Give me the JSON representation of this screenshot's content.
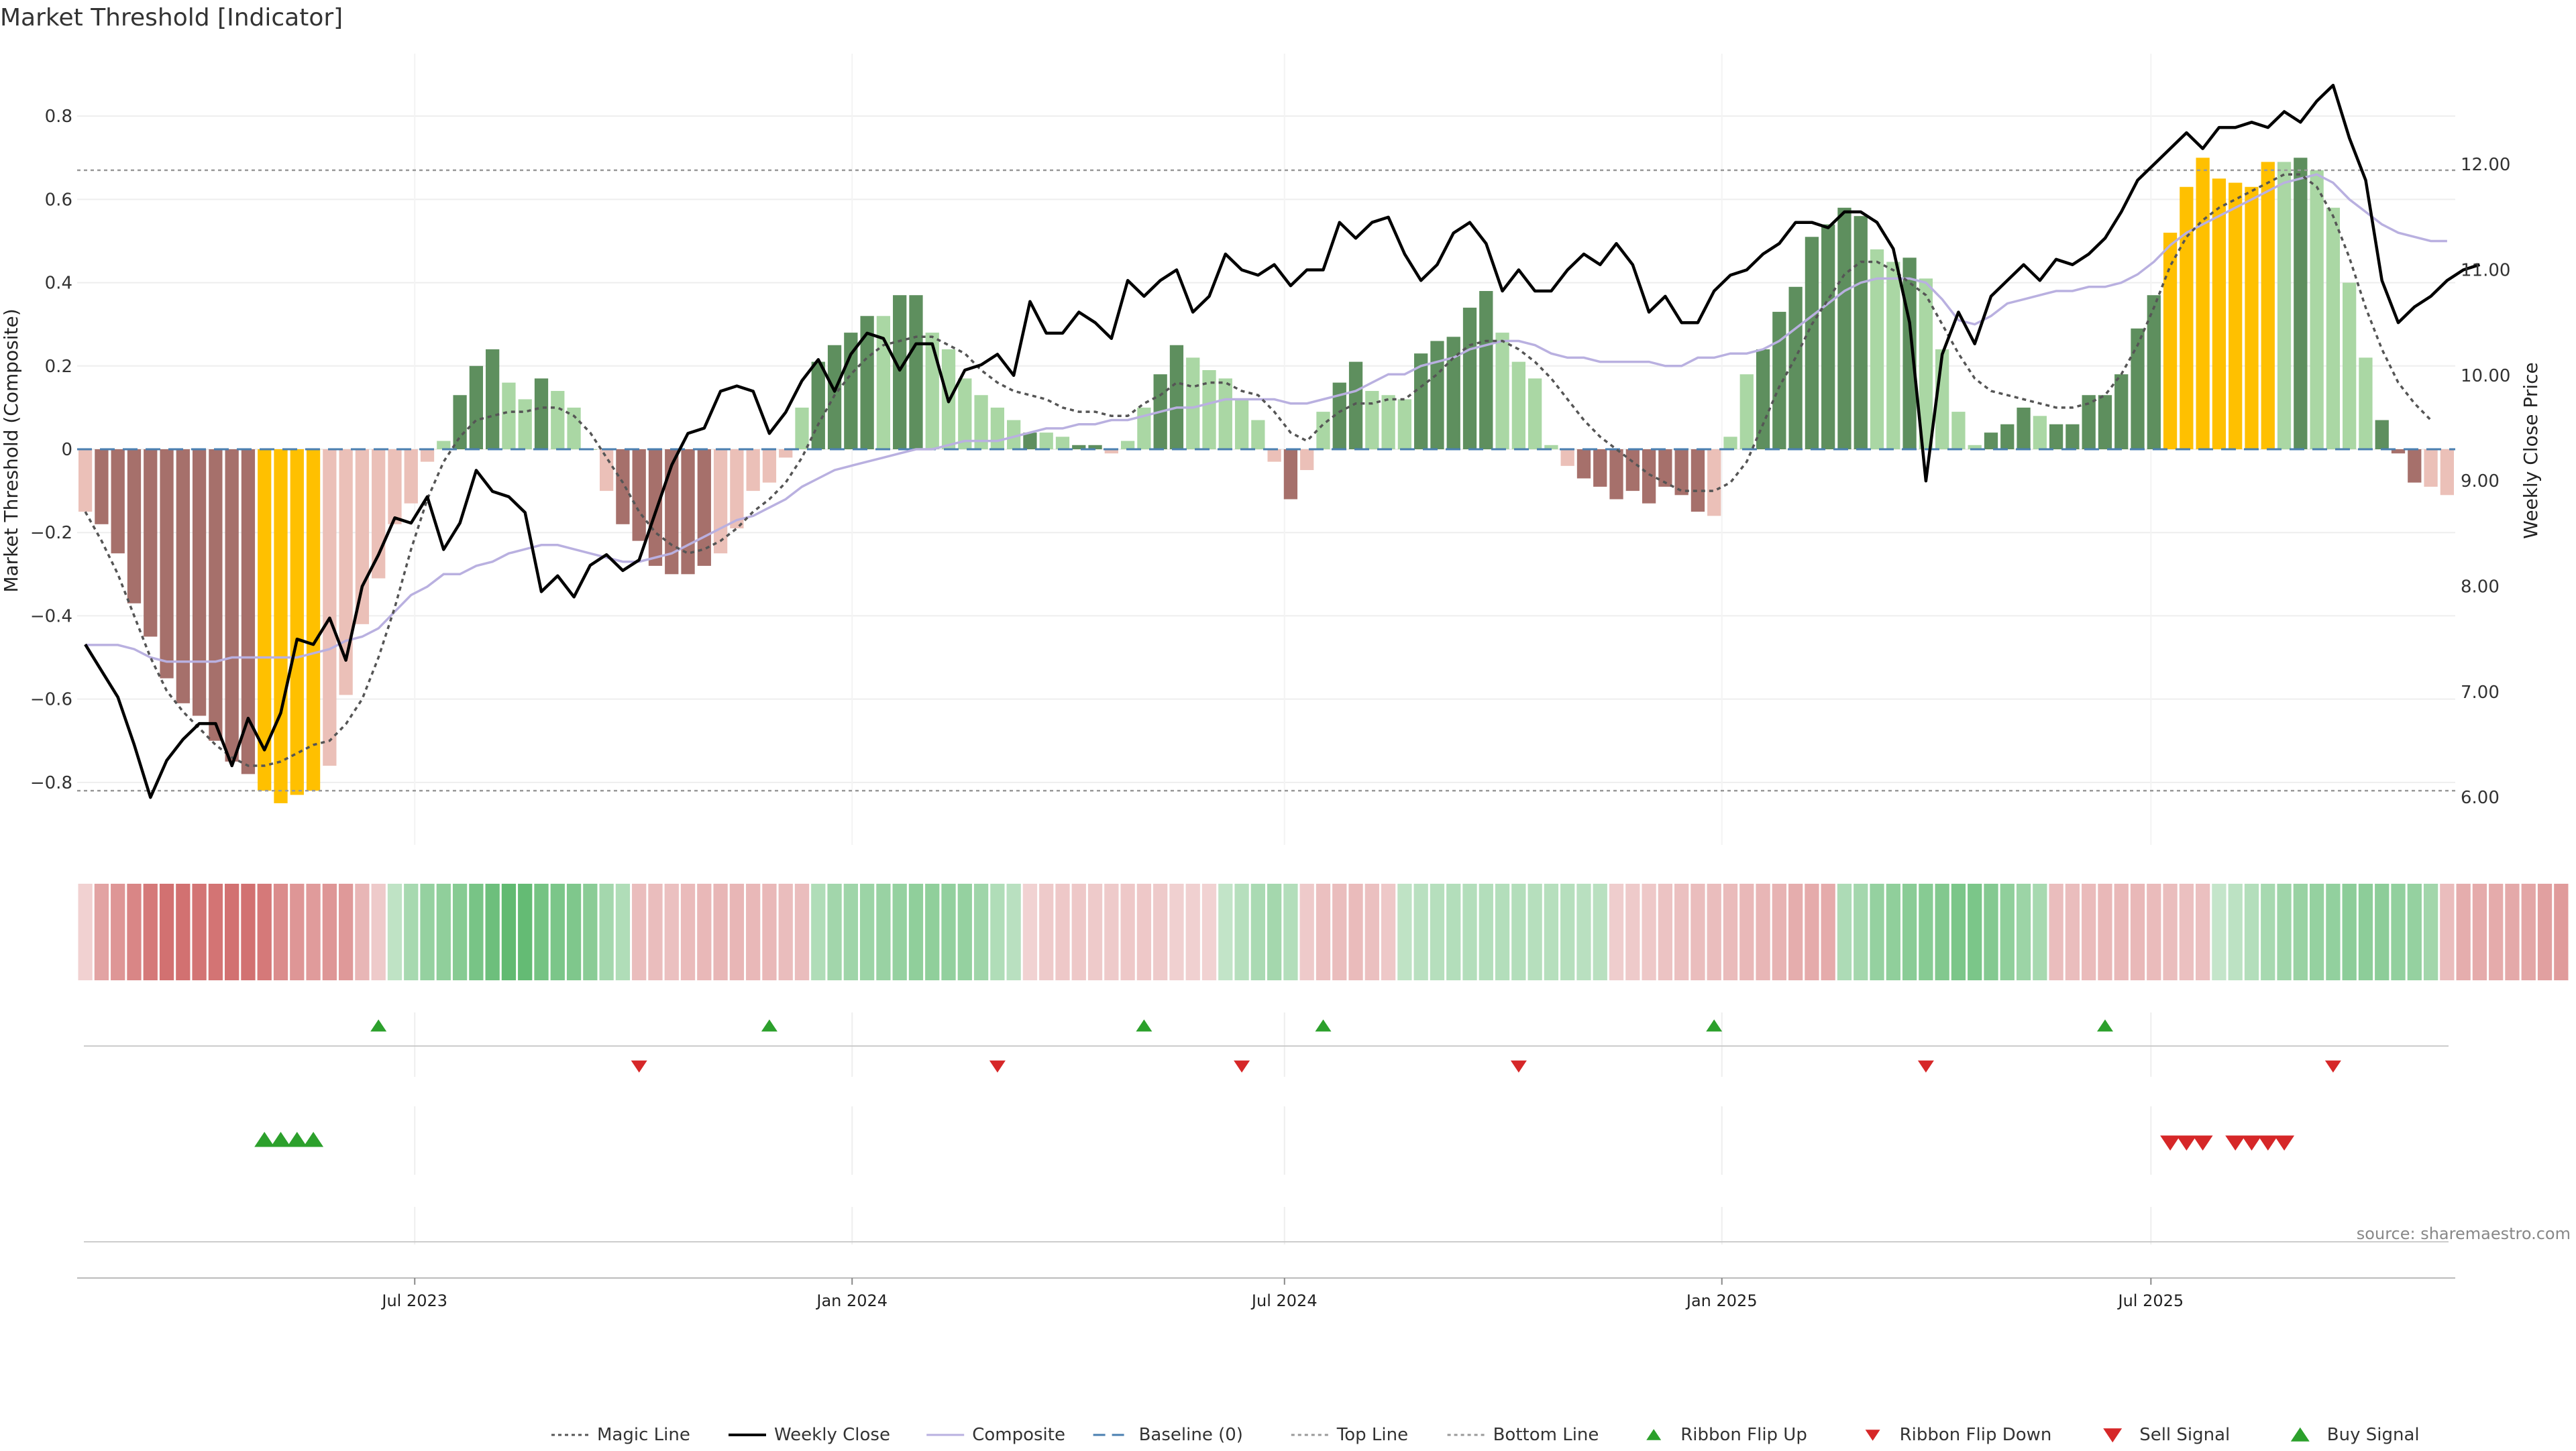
{
  "chart_data": {
    "type": "bar",
    "title": "Market Threshold [Indicator]",
    "ylabel": "Market Threshold (Composite)",
    "y2label": "Weekly Close Price",
    "source": "source: sharemaestro.com",
    "ylim": [
      -0.95,
      0.95
    ],
    "y2lim": [
      5.55,
      13.05
    ],
    "yticks": [
      -0.8,
      -0.6,
      -0.4,
      -0.2,
      0,
      0.2,
      0.4,
      0.6,
      0.8
    ],
    "ytick_labels": [
      "−0.8",
      "−0.6",
      "−0.4",
      "−0.2",
      "0",
      "0.2",
      "0.4",
      "0.6",
      "0.8"
    ],
    "y2ticks": [
      6,
      7,
      8,
      9,
      10,
      11,
      12
    ],
    "y2tick_labels": [
      "6.00",
      "7.00",
      "8.00",
      "9.00",
      "10.00",
      "11.00",
      "12.00"
    ],
    "x_range": [
      0,
      143
    ],
    "xticks": [
      {
        "label": "Jul 2023",
        "x": 20.3
      },
      {
        "label": "Jan 2024",
        "x": 46.6
      },
      {
        "label": "Jul 2024",
        "x": 72.6
      },
      {
        "label": "Jan 2025",
        "x": 98.9
      },
      {
        "label": "Jul 2025",
        "x": 124.7
      }
    ],
    "top_line": 0.67,
    "bottom_line": -0.82,
    "baseline": 0,
    "grid": true,
    "legend_placement": "bottom-center",
    "colors": {
      "dark_green": "#5e8f5e",
      "light_green": "#aad7a4",
      "dark_red": "#a6706b",
      "light_red": "#ebc0b8",
      "gold": "#ffc000",
      "close_line": "#000000",
      "composite_line": "#b9b0e0",
      "magic_line": "#555555",
      "baseline": "#4a7fb0",
      "threshold_line": "#999999",
      "buy": "#2ca02c",
      "sell": "#d62728"
    },
    "composite": [
      -0.15,
      -0.18,
      -0.25,
      -0.37,
      -0.45,
      -0.55,
      -0.61,
      -0.64,
      -0.7,
      -0.75,
      -0.78,
      -0.82,
      -0.85,
      -0.83,
      -0.82,
      -0.76,
      -0.59,
      -0.42,
      -0.31,
      -0.18,
      -0.13,
      -0.03,
      0.02,
      0.13,
      0.2,
      0.24,
      0.16,
      0.12,
      0.17,
      0.14,
      0.1,
      0,
      -0.1,
      -0.18,
      -0.22,
      -0.28,
      -0.3,
      -0.3,
      -0.28,
      -0.25,
      -0.19,
      -0.1,
      -0.08,
      -0.02,
      0.1,
      0.21,
      0.25,
      0.28,
      0.32,
      0.32,
      0.37,
      0.37,
      0.28,
      0.24,
      0.17,
      0.13,
      0.1,
      0.07,
      0.04,
      0.04,
      0.03,
      0.01,
      0.01,
      -0.01,
      0.02,
      0.1,
      0.18,
      0.25,
      0.22,
      0.19,
      0.17,
      0.12,
      0.07,
      -0.03,
      -0.12,
      -0.05,
      0.09,
      0.16,
      0.21,
      0.14,
      0.13,
      0.12,
      0.23,
      0.26,
      0.27,
      0.34,
      0.38,
      0.28,
      0.21,
      0.17,
      0.01,
      -0.04,
      -0.07,
      -0.09,
      -0.12,
      -0.1,
      -0.13,
      -0.09,
      -0.11,
      -0.15,
      -0.16,
      0.03,
      0.18,
      0.24,
      0.33,
      0.39,
      0.51,
      0.54,
      0.58,
      0.56,
      0.48,
      0.45,
      0.46,
      0.41,
      0.24,
      0.09,
      0.01,
      0.04,
      0.06,
      0.1,
      0.08,
      0.06,
      0.06,
      0.13,
      0.13,
      0.18,
      0.29,
      0.37,
      0.52,
      0.63,
      0.7,
      0.65,
      0.64,
      0.63,
      0.69,
      0.69,
      0.7,
      0.67,
      0.58,
      0.4,
      0.22,
      0.07,
      -0.01,
      -0.08,
      -0.09,
      -0.11
    ],
    "bar_shade": [
      "L",
      "D",
      "D",
      "D",
      "D",
      "D",
      "D",
      "D",
      "D",
      "D",
      "D",
      "G",
      "G",
      "G",
      "G",
      "L",
      "L",
      "L",
      "L",
      "L",
      "L",
      "L",
      "L",
      "D",
      "D",
      "D",
      "L",
      "L",
      "D",
      "L",
      "L",
      "L",
      "L",
      "D",
      "D",
      "D",
      "D",
      "D",
      "D",
      "L",
      "L",
      "L",
      "L",
      "L",
      "L",
      "D",
      "D",
      "D",
      "D",
      "L",
      "D",
      "D",
      "L",
      "L",
      "L",
      "L",
      "L",
      "L",
      "D",
      "L",
      "L",
      "D",
      "D",
      "L",
      "L",
      "L",
      "D",
      "D",
      "L",
      "L",
      "L",
      "L",
      "L",
      "L",
      "D",
      "L",
      "L",
      "D",
      "D",
      "L",
      "L",
      "L",
      "D",
      "D",
      "D",
      "D",
      "D",
      "L",
      "L",
      "L",
      "L",
      "L",
      "D",
      "D",
      "D",
      "D",
      "D",
      "D",
      "D",
      "D",
      "L",
      "L",
      "L",
      "D",
      "D",
      "D",
      "D",
      "D",
      "D",
      "D",
      "L",
      "L",
      "D",
      "L",
      "L",
      "L",
      "L",
      "D",
      "D",
      "D",
      "L",
      "D",
      "D",
      "D",
      "D",
      "D",
      "D",
      "D",
      "G",
      "G",
      "G",
      "G",
      "G",
      "G",
      "G",
      "L",
      "D",
      "L",
      "L",
      "L",
      "L",
      "D",
      "D",
      "D"
    ],
    "weekly_close": [
      7.45,
      7.2,
      6.95,
      6.5,
      6.0,
      6.35,
      6.55,
      6.7,
      6.7,
      6.3,
      6.75,
      6.45,
      6.8,
      7.5,
      7.45,
      7.7,
      7.3,
      8.0,
      8.3,
      8.65,
      8.6,
      8.85,
      8.35,
      8.6,
      9.1,
      8.9,
      8.85,
      8.7,
      7.95,
      8.1,
      7.9,
      8.2,
      8.3,
      8.15,
      8.25,
      8.7,
      9.15,
      9.45,
      9.5,
      9.85,
      9.9,
      9.85,
      9.45,
      9.65,
      9.95,
      10.15,
      9.85,
      10.2,
      10.4,
      10.35,
      10.05,
      10.3,
      10.3,
      9.75,
      10.05,
      10.1,
      10.2,
      10.0,
      10.7,
      10.4,
      10.4,
      10.6,
      10.5,
      10.35,
      10.9,
      10.75,
      10.9,
      11.0,
      10.6,
      10.75,
      11.15,
      11.0,
      10.95,
      11.05,
      10.85,
      11.0,
      11.0,
      11.45,
      11.3,
      11.45,
      11.5,
      11.15,
      10.9,
      11.05,
      11.35,
      11.45,
      11.25,
      10.8,
      11.0,
      10.8,
      10.8,
      11.0,
      11.15,
      11.05,
      11.25,
      11.05,
      10.6,
      10.75,
      10.5,
      10.5,
      10.8,
      10.95,
      11.0,
      11.15,
      11.25,
      11.45,
      11.45,
      11.4,
      11.55,
      11.55,
      11.45,
      11.2,
      10.5,
      9.0,
      10.2,
      10.6,
      10.3,
      10.75,
      10.9,
      11.05,
      10.9,
      11.1,
      11.05,
      11.15,
      11.3,
      11.55,
      11.85,
      12.0,
      12.15,
      12.3,
      12.15,
      12.35,
      12.35,
      12.4,
      12.35,
      12.5,
      12.4,
      12.6,
      12.75,
      12.25,
      11.85,
      10.9,
      10.5,
      10.65,
      10.75,
      10.9,
      11.0,
      11.05
    ],
    "composite_line": [
      -0.47,
      -0.47,
      -0.47,
      -0.48,
      -0.5,
      -0.51,
      -0.51,
      -0.51,
      -0.51,
      -0.5,
      -0.5,
      -0.5,
      -0.5,
      -0.5,
      -0.49,
      -0.48,
      -0.46,
      -0.45,
      -0.43,
      -0.39,
      -0.35,
      -0.33,
      -0.3,
      -0.3,
      -0.28,
      -0.27,
      -0.25,
      -0.24,
      -0.23,
      -0.23,
      -0.24,
      -0.25,
      -0.26,
      -0.27,
      -0.27,
      -0.26,
      -0.25,
      -0.23,
      -0.21,
      -0.19,
      -0.17,
      -0.16,
      -0.14,
      -0.12,
      -0.09,
      -0.07,
      -0.05,
      -0.04,
      -0.03,
      -0.02,
      -0.01,
      0.0,
      0.0,
      0.01,
      0.02,
      0.02,
      0.02,
      0.03,
      0.04,
      0.05,
      0.05,
      0.06,
      0.06,
      0.07,
      0.07,
      0.08,
      0.09,
      0.1,
      0.1,
      0.11,
      0.12,
      0.12,
      0.12,
      0.12,
      0.11,
      0.11,
      0.12,
      0.13,
      0.14,
      0.16,
      0.18,
      0.18,
      0.2,
      0.21,
      0.22,
      0.24,
      0.25,
      0.26,
      0.26,
      0.25,
      0.23,
      0.22,
      0.22,
      0.21,
      0.21,
      0.21,
      0.21,
      0.2,
      0.2,
      0.22,
      0.22,
      0.23,
      0.23,
      0.24,
      0.26,
      0.29,
      0.32,
      0.35,
      0.38,
      0.4,
      0.41,
      0.41,
      0.41,
      0.4,
      0.36,
      0.31,
      0.3,
      0.32,
      0.35,
      0.36,
      0.37,
      0.38,
      0.38,
      0.39,
      0.39,
      0.4,
      0.42,
      0.45,
      0.49,
      0.52,
      0.54,
      0.56,
      0.58,
      0.6,
      0.62,
      0.64,
      0.65,
      0.66,
      0.64,
      0.6,
      0.57,
      0.54,
      0.52,
      0.51,
      0.5,
      0.5
    ],
    "magic_line": [
      -0.15,
      -0.22,
      -0.3,
      -0.4,
      -0.5,
      -0.58,
      -0.63,
      -0.67,
      -0.71,
      -0.74,
      -0.76,
      -0.76,
      -0.75,
      -0.73,
      -0.71,
      -0.7,
      -0.66,
      -0.6,
      -0.5,
      -0.38,
      -0.24,
      -0.12,
      -0.03,
      0.03,
      0.07,
      0.08,
      0.09,
      0.09,
      0.1,
      0.1,
      0.08,
      0.04,
      -0.02,
      -0.08,
      -0.15,
      -0.2,
      -0.23,
      -0.25,
      -0.24,
      -0.22,
      -0.19,
      -0.15,
      -0.12,
      -0.08,
      -0.02,
      0.06,
      0.13,
      0.18,
      0.22,
      0.25,
      0.26,
      0.27,
      0.27,
      0.25,
      0.23,
      0.19,
      0.16,
      0.14,
      0.13,
      0.12,
      0.1,
      0.09,
      0.09,
      0.08,
      0.08,
      0.11,
      0.13,
      0.16,
      0.15,
      0.16,
      0.16,
      0.14,
      0.13,
      0.09,
      0.04,
      0.02,
      0.06,
      0.09,
      0.11,
      0.11,
      0.12,
      0.12,
      0.15,
      0.18,
      0.22,
      0.25,
      0.26,
      0.26,
      0.24,
      0.21,
      0.17,
      0.12,
      0.07,
      0.03,
      0.0,
      -0.03,
      -0.06,
      -0.08,
      -0.1,
      -0.1,
      -0.1,
      -0.08,
      -0.03,
      0.06,
      0.15,
      0.22,
      0.3,
      0.36,
      0.42,
      0.45,
      0.45,
      0.43,
      0.4,
      0.37,
      0.3,
      0.23,
      0.17,
      0.14,
      0.13,
      0.12,
      0.11,
      0.1,
      0.1,
      0.11,
      0.13,
      0.18,
      0.25,
      0.34,
      0.44,
      0.51,
      0.55,
      0.58,
      0.6,
      0.62,
      0.64,
      0.66,
      0.66,
      0.63,
      0.56,
      0.46,
      0.34,
      0.24,
      0.16,
      0.11,
      0.07
    ],
    "ribbon": [
      -0.15,
      -0.5,
      -0.6,
      -0.72,
      -0.82,
      -0.88,
      -0.88,
      -0.86,
      -0.86,
      -0.88,
      -0.88,
      -0.82,
      -0.68,
      -0.6,
      -0.56,
      -0.6,
      -0.58,
      -0.36,
      -0.2,
      0.24,
      0.4,
      0.52,
      0.56,
      0.62,
      0.72,
      0.8,
      0.88,
      0.86,
      0.74,
      0.7,
      0.68,
      0.6,
      0.42,
      0.34,
      -0.3,
      -0.3,
      -0.28,
      -0.32,
      -0.34,
      -0.36,
      -0.36,
      -0.34,
      -0.34,
      -0.3,
      -0.3,
      0.34,
      0.44,
      0.46,
      0.48,
      0.5,
      0.52,
      0.56,
      0.56,
      0.54,
      0.52,
      0.46,
      0.34,
      0.28,
      -0.14,
      -0.2,
      -0.22,
      -0.22,
      -0.2,
      -0.2,
      -0.22,
      -0.22,
      -0.2,
      -0.16,
      -0.16,
      -0.14,
      0.22,
      0.3,
      0.38,
      0.42,
      0.32,
      -0.2,
      -0.28,
      -0.3,
      -0.32,
      -0.28,
      -0.22,
      0.24,
      0.28,
      0.3,
      0.32,
      0.32,
      0.32,
      0.32,
      0.32,
      0.3,
      0.3,
      0.3,
      0.28,
      0.28,
      -0.18,
      -0.2,
      -0.22,
      -0.26,
      -0.28,
      -0.3,
      -0.3,
      -0.32,
      -0.34,
      -0.36,
      -0.38,
      -0.42,
      -0.44,
      -0.44,
      0.36,
      0.42,
      0.52,
      0.56,
      0.6,
      0.62,
      0.66,
      0.7,
      0.7,
      0.64,
      0.56,
      0.48,
      0.4,
      -0.3,
      -0.3,
      -0.32,
      -0.34,
      -0.34,
      -0.34,
      -0.32,
      -0.3,
      -0.28,
      -0.28,
      0.2,
      0.26,
      0.32,
      0.4,
      0.46,
      0.5,
      0.52,
      0.54,
      0.58,
      0.58,
      0.58,
      0.54,
      0.52,
      0.44,
      -0.3,
      -0.42,
      -0.44,
      -0.44,
      -0.46,
      -0.48,
      -0.52,
      -0.56
    ],
    "ribbon_flip_up": [
      18,
      42,
      65,
      76,
      100,
      124
    ],
    "ribbon_flip_down": [
      34,
      56,
      71,
      88,
      113,
      138
    ],
    "buy_signals": [
      11,
      12,
      13,
      14
    ],
    "sell_signals": [
      128,
      129,
      130,
      132,
      133,
      134,
      135
    ],
    "legend": [
      {
        "label": "Magic Line",
        "kind": "line-dotted",
        "color": "#555555"
      },
      {
        "label": "Weekly Close",
        "kind": "line-solid",
        "color": "#000000"
      },
      {
        "label": "Composite",
        "kind": "line-solid-light",
        "color": "#b9b0e0"
      },
      {
        "label": "Baseline (0)",
        "kind": "line-dashed",
        "color": "#4a7fb0"
      },
      {
        "label": "Top Line",
        "kind": "line-dotted-light",
        "color": "#999999"
      },
      {
        "label": "Bottom Line",
        "kind": "line-dotted-light",
        "color": "#999999"
      },
      {
        "label": "Ribbon Flip Up",
        "kind": "marker-up",
        "color": "#2ca02c"
      },
      {
        "label": "Ribbon Flip Down",
        "kind": "marker-down",
        "color": "#d62728"
      },
      {
        "label": "Sell Signal",
        "kind": "marker-down-big",
        "color": "#d62728"
      },
      {
        "label": "Buy Signal",
        "kind": "marker-up-big",
        "color": "#2ca02c"
      }
    ]
  }
}
